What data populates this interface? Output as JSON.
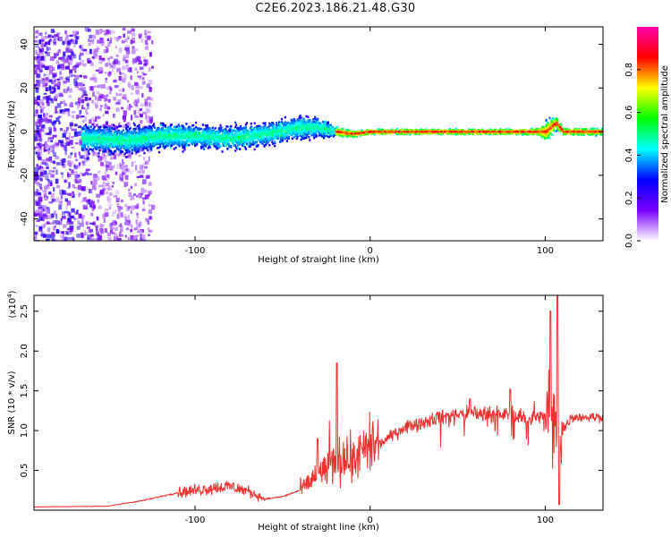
{
  "title": "C2E6.2023.186.21.48.G30",
  "chart_data": [
    {
      "type": "heatmap",
      "name": "spectrogram",
      "xlabel": "Height of straight line (km)",
      "ylabel": "Frequency (Hz)",
      "xlim": [
        -192,
        133
      ],
      "ylim": [
        -50,
        48
      ],
      "xticks": [
        -100,
        0,
        100
      ],
      "xtick_labels": [
        "-100",
        "0",
        "100"
      ],
      "yticks": [
        -40,
        -20,
        0,
        20,
        40
      ],
      "ytick_labels": [
        "-40",
        "-20",
        "0",
        "20",
        "40"
      ],
      "colorbar": {
        "label": "Normalized spectral amplitude",
        "range": [
          0,
          1
        ],
        "ticks": [
          0.0,
          0.2,
          0.4,
          0.6,
          0.8
        ],
        "tick_labels": [
          "0.0",
          "0.2",
          "0.4",
          "0.6",
          "0.8"
        ],
        "colormap": [
          "#ffffff",
          "#7a00ff",
          "#0000ff",
          "#00ffff",
          "#00ff00",
          "#ffff00",
          "#ff0000",
          "#ff00aa"
        ]
      },
      "ridge": {
        "x": [
          -160,
          -140,
          -120,
          -100,
          -80,
          -60,
          -40,
          -30,
          -20,
          -10,
          0,
          20,
          40,
          60,
          80,
          95,
          100,
          103,
          106,
          110,
          133
        ],
        "center_hz": [
          -3,
          -4,
          -2,
          -2,
          -3,
          -1,
          2,
          2,
          0,
          -1,
          0,
          0,
          0,
          0,
          0,
          0,
          0,
          2,
          4,
          0,
          0
        ],
        "spread_hz": [
          8,
          8,
          8,
          7,
          7,
          7,
          7,
          6,
          3,
          2,
          1.5,
          1.5,
          1.5,
          1.5,
          1.5,
          2,
          6,
          6,
          4,
          2,
          2
        ]
      },
      "grid": false
    },
    {
      "type": "line",
      "name": "snr",
      "xlabel": "Height of straight line (km)",
      "ylabel": "SNR (10 * v/v)",
      "y_multiplier_label": "(x10",
      "y_multiplier_exp": "4",
      "xlim": [
        -192,
        133
      ],
      "ylim": [
        0,
        27000
      ],
      "xticks": [
        -100,
        0,
        100
      ],
      "xtick_labels": [
        "-100",
        "0",
        "100"
      ],
      "yticks": [
        5000,
        10000,
        15000,
        20000,
        25000
      ],
      "ytick_labels": [
        "0.5",
        "1.0",
        "1.5",
        "2.0",
        "2.5"
      ],
      "color": "#ee3030",
      "envelope": {
        "x": [
          -192,
          -150,
          -130,
          -110,
          -90,
          -80,
          -70,
          -60,
          -50,
          -40,
          -30,
          -20,
          -10,
          0,
          10,
          20,
          30,
          40,
          50,
          60,
          80,
          90,
          100,
          105,
          110,
          115,
          133
        ],
        "y": [
          400,
          500,
          1200,
          2200,
          2800,
          3000,
          2400,
          1400,
          1700,
          2500,
          4500,
          6000,
          6500,
          7500,
          9000,
          10500,
          11000,
          11800,
          12000,
          12200,
          12000,
          11500,
          11800,
          10000,
          10000,
          11700,
          11700
        ]
      },
      "spikes": [
        {
          "x": -19,
          "y": 18500
        },
        {
          "x": -30,
          "y": 9000
        },
        {
          "x": 57,
          "y": 14000
        },
        {
          "x": 80,
          "y": 15200
        },
        {
          "x": 103,
          "y": 25000
        },
        {
          "x": 107,
          "y": 27000
        },
        {
          "x": 108,
          "y": 700
        }
      ],
      "grid": false
    }
  ]
}
